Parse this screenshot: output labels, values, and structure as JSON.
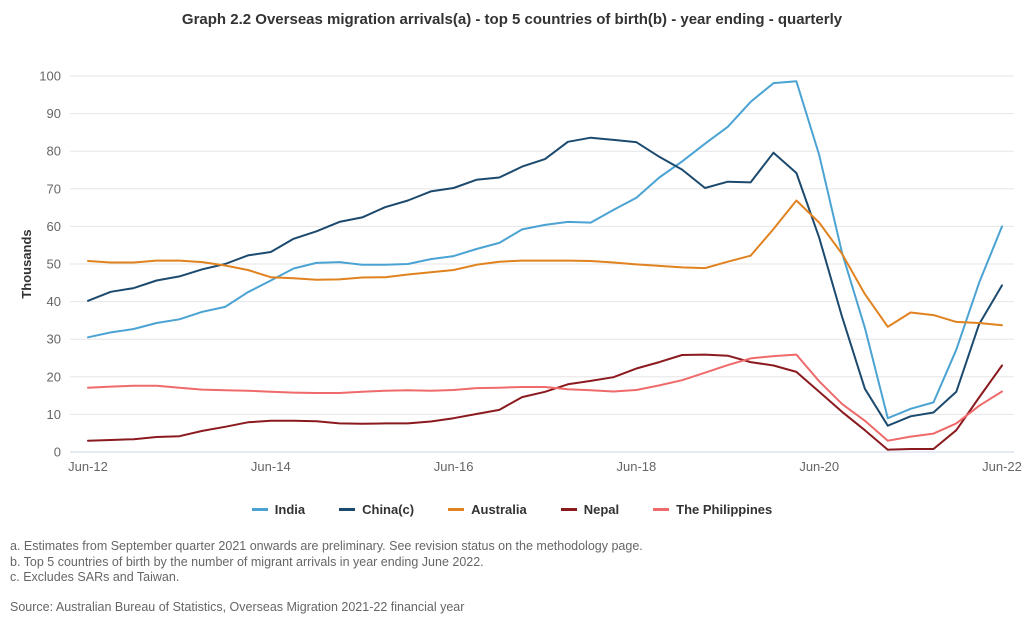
{
  "chart_data": {
    "type": "line",
    "title": "Graph 2.2 Overseas migration arrivals(a) - top 5 countries of birth(b) - year ending - quarterly",
    "xlabel": "",
    "ylabel": "Thousands",
    "ylim": [
      0,
      100
    ],
    "yticks": [
      0,
      10,
      20,
      30,
      40,
      50,
      60,
      70,
      80,
      90,
      100
    ],
    "xtick_labels": [
      "Jun-12",
      "Jun-14",
      "Jun-16",
      "Jun-18",
      "Jun-20",
      "Jun-22"
    ],
    "xtick_indices": [
      0,
      8,
      16,
      24,
      32,
      40
    ],
    "grid": true,
    "legend": "bottom",
    "x": [
      "Jun-12",
      "Sep-12",
      "Dec-12",
      "Mar-13",
      "Jun-13",
      "Sep-13",
      "Dec-13",
      "Mar-14",
      "Jun-14",
      "Sep-14",
      "Dec-14",
      "Mar-15",
      "Jun-15",
      "Sep-15",
      "Dec-15",
      "Mar-16",
      "Jun-16",
      "Sep-16",
      "Dec-16",
      "Mar-17",
      "Jun-17",
      "Sep-17",
      "Dec-17",
      "Mar-18",
      "Jun-18",
      "Sep-18",
      "Dec-18",
      "Mar-19",
      "Jun-19",
      "Sep-19",
      "Dec-19",
      "Mar-20",
      "Jun-20",
      "Sep-20",
      "Dec-20",
      "Mar-21",
      "Jun-21",
      "Sep-21",
      "Dec-21",
      "Mar-22",
      "Jun-22"
    ],
    "series": [
      {
        "name": "India",
        "color": "#4ba3d3",
        "values": [
          30.5,
          31.8,
          32.7,
          34.3,
          35.3,
          37.3,
          38.6,
          42.5,
          45.6,
          48.8,
          50.3,
          50.5,
          49.8,
          49.8,
          50.0,
          51.3,
          52.1,
          54.0,
          55.6,
          59.2,
          60.4,
          61.2,
          61.0,
          64.4,
          67.6,
          73.0,
          77.3,
          82.0,
          86.5,
          93.1,
          98.1,
          98.6,
          79.0,
          53.0,
          33.0,
          9.0,
          11.5,
          13.2,
          27.2,
          45.0,
          60.0
        ]
      },
      {
        "name": "China(c)",
        "color": "#1c4a6e",
        "values": [
          40.2,
          42.6,
          43.6,
          45.6,
          46.7,
          48.6,
          50.0,
          52.3,
          53.2,
          56.7,
          58.7,
          61.2,
          62.4,
          65.1,
          66.9,
          69.3,
          70.2,
          72.4,
          73.0,
          75.9,
          77.9,
          82.5,
          83.6,
          83.0,
          82.4,
          78.5,
          75.1,
          70.2,
          71.9,
          71.7,
          79.6,
          74.2,
          57.0,
          36.0,
          16.8,
          7.0,
          9.5,
          10.5,
          16.0,
          34.0,
          44.3
        ]
      },
      {
        "name": "Australia",
        "color": "#e0821f",
        "values": [
          50.8,
          50.4,
          50.4,
          50.9,
          50.9,
          50.5,
          49.6,
          48.4,
          46.5,
          46.2,
          45.8,
          45.9,
          46.4,
          46.5,
          47.2,
          47.8,
          48.4,
          49.8,
          50.6,
          50.9,
          50.9,
          50.9,
          50.8,
          50.4,
          49.9,
          49.5,
          49.1,
          48.9,
          50.6,
          52.2,
          59.3,
          66.9,
          61.0,
          52.7,
          42.0,
          33.3,
          37.1,
          36.4,
          34.6,
          34.3,
          33.7
        ]
      },
      {
        "name": "Nepal",
        "color": "#8b1a1f",
        "values": [
          3.0,
          3.2,
          3.4,
          4.0,
          4.2,
          5.6,
          6.7,
          7.9,
          8.3,
          8.3,
          8.2,
          7.6,
          7.5,
          7.6,
          7.6,
          8.1,
          9.0,
          10.1,
          11.2,
          14.6,
          16.0,
          18.0,
          18.9,
          19.9,
          22.2,
          23.9,
          25.8,
          25.9,
          25.6,
          23.9,
          23.0,
          21.3,
          16.0,
          10.7,
          5.8,
          0.6,
          0.8,
          0.8,
          5.8,
          14.5,
          23.0
        ]
      },
      {
        "name": "The Philippines",
        "color": "#ef6a6a",
        "values": [
          17.1,
          17.4,
          17.6,
          17.6,
          17.1,
          16.6,
          16.4,
          16.3,
          16.0,
          15.8,
          15.7,
          15.7,
          16.0,
          16.3,
          16.4,
          16.3,
          16.5,
          17.0,
          17.1,
          17.3,
          17.3,
          16.7,
          16.4,
          16.1,
          16.5,
          17.7,
          19.1,
          21.1,
          23.1,
          24.9,
          25.5,
          25.9,
          18.8,
          12.8,
          8.3,
          3.0,
          4.1,
          4.9,
          7.6,
          12.3,
          16.1
        ]
      }
    ]
  },
  "notes": [
    "a. Estimates from September quarter 2021 onwards are preliminary. See revision status on the methodology page.",
    "b. Top 5 countries of birth by the number of migrant arrivals in year ending June 2022.",
    "c. Excludes SARs and Taiwan."
  ],
  "source": "Source: Australian Bureau of Statistics, Overseas Migration 2021-22 financial year"
}
